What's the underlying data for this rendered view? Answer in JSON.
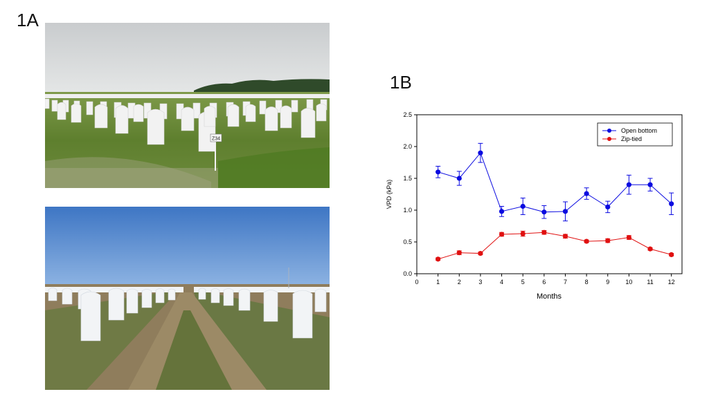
{
  "panels": {
    "a_label": "1A",
    "b_label": "1B"
  },
  "photos": {
    "top": {
      "sign_text": "Z34"
    }
  },
  "colors": {
    "open_bottom": "#0a0ae0",
    "zip_tied": "#e01010"
  },
  "chart_data": {
    "type": "line",
    "title": "",
    "xlabel": "Months",
    "ylabel": "VPD (kPa)",
    "xlim": [
      0,
      12.5
    ],
    "ylim": [
      0,
      2.5
    ],
    "x_ticks": [
      "0",
      "1",
      "2",
      "3",
      "4",
      "5",
      "6",
      "7",
      "8",
      "9",
      "10",
      "11",
      "12"
    ],
    "y_ticks": [
      "0.0",
      "0.5",
      "1.0",
      "1.5",
      "2.0",
      "2.5"
    ],
    "legend_position": "top-right",
    "x": [
      1,
      2,
      3,
      4,
      5,
      6,
      7,
      8,
      9,
      10,
      11,
      12
    ],
    "series": [
      {
        "name": "Open bottom",
        "values": [
          1.6,
          1.5,
          1.9,
          0.98,
          1.06,
          0.97,
          0.98,
          1.26,
          1.05,
          1.4,
          1.4,
          1.1
        ],
        "errors": [
          0.09,
          0.11,
          0.15,
          0.08,
          0.13,
          0.1,
          0.15,
          0.09,
          0.09,
          0.15,
          0.1,
          0.17
        ]
      },
      {
        "name": "Zip-tied",
        "values": [
          0.23,
          0.33,
          0.32,
          0.62,
          0.63,
          0.65,
          0.59,
          0.51,
          0.52,
          0.57,
          0.39,
          0.3
        ],
        "errors": [
          0.02,
          0.03,
          0.02,
          0.03,
          0.04,
          0.03,
          0.03,
          0.02,
          0.03,
          0.03,
          0.02,
          0.02
        ]
      }
    ]
  }
}
